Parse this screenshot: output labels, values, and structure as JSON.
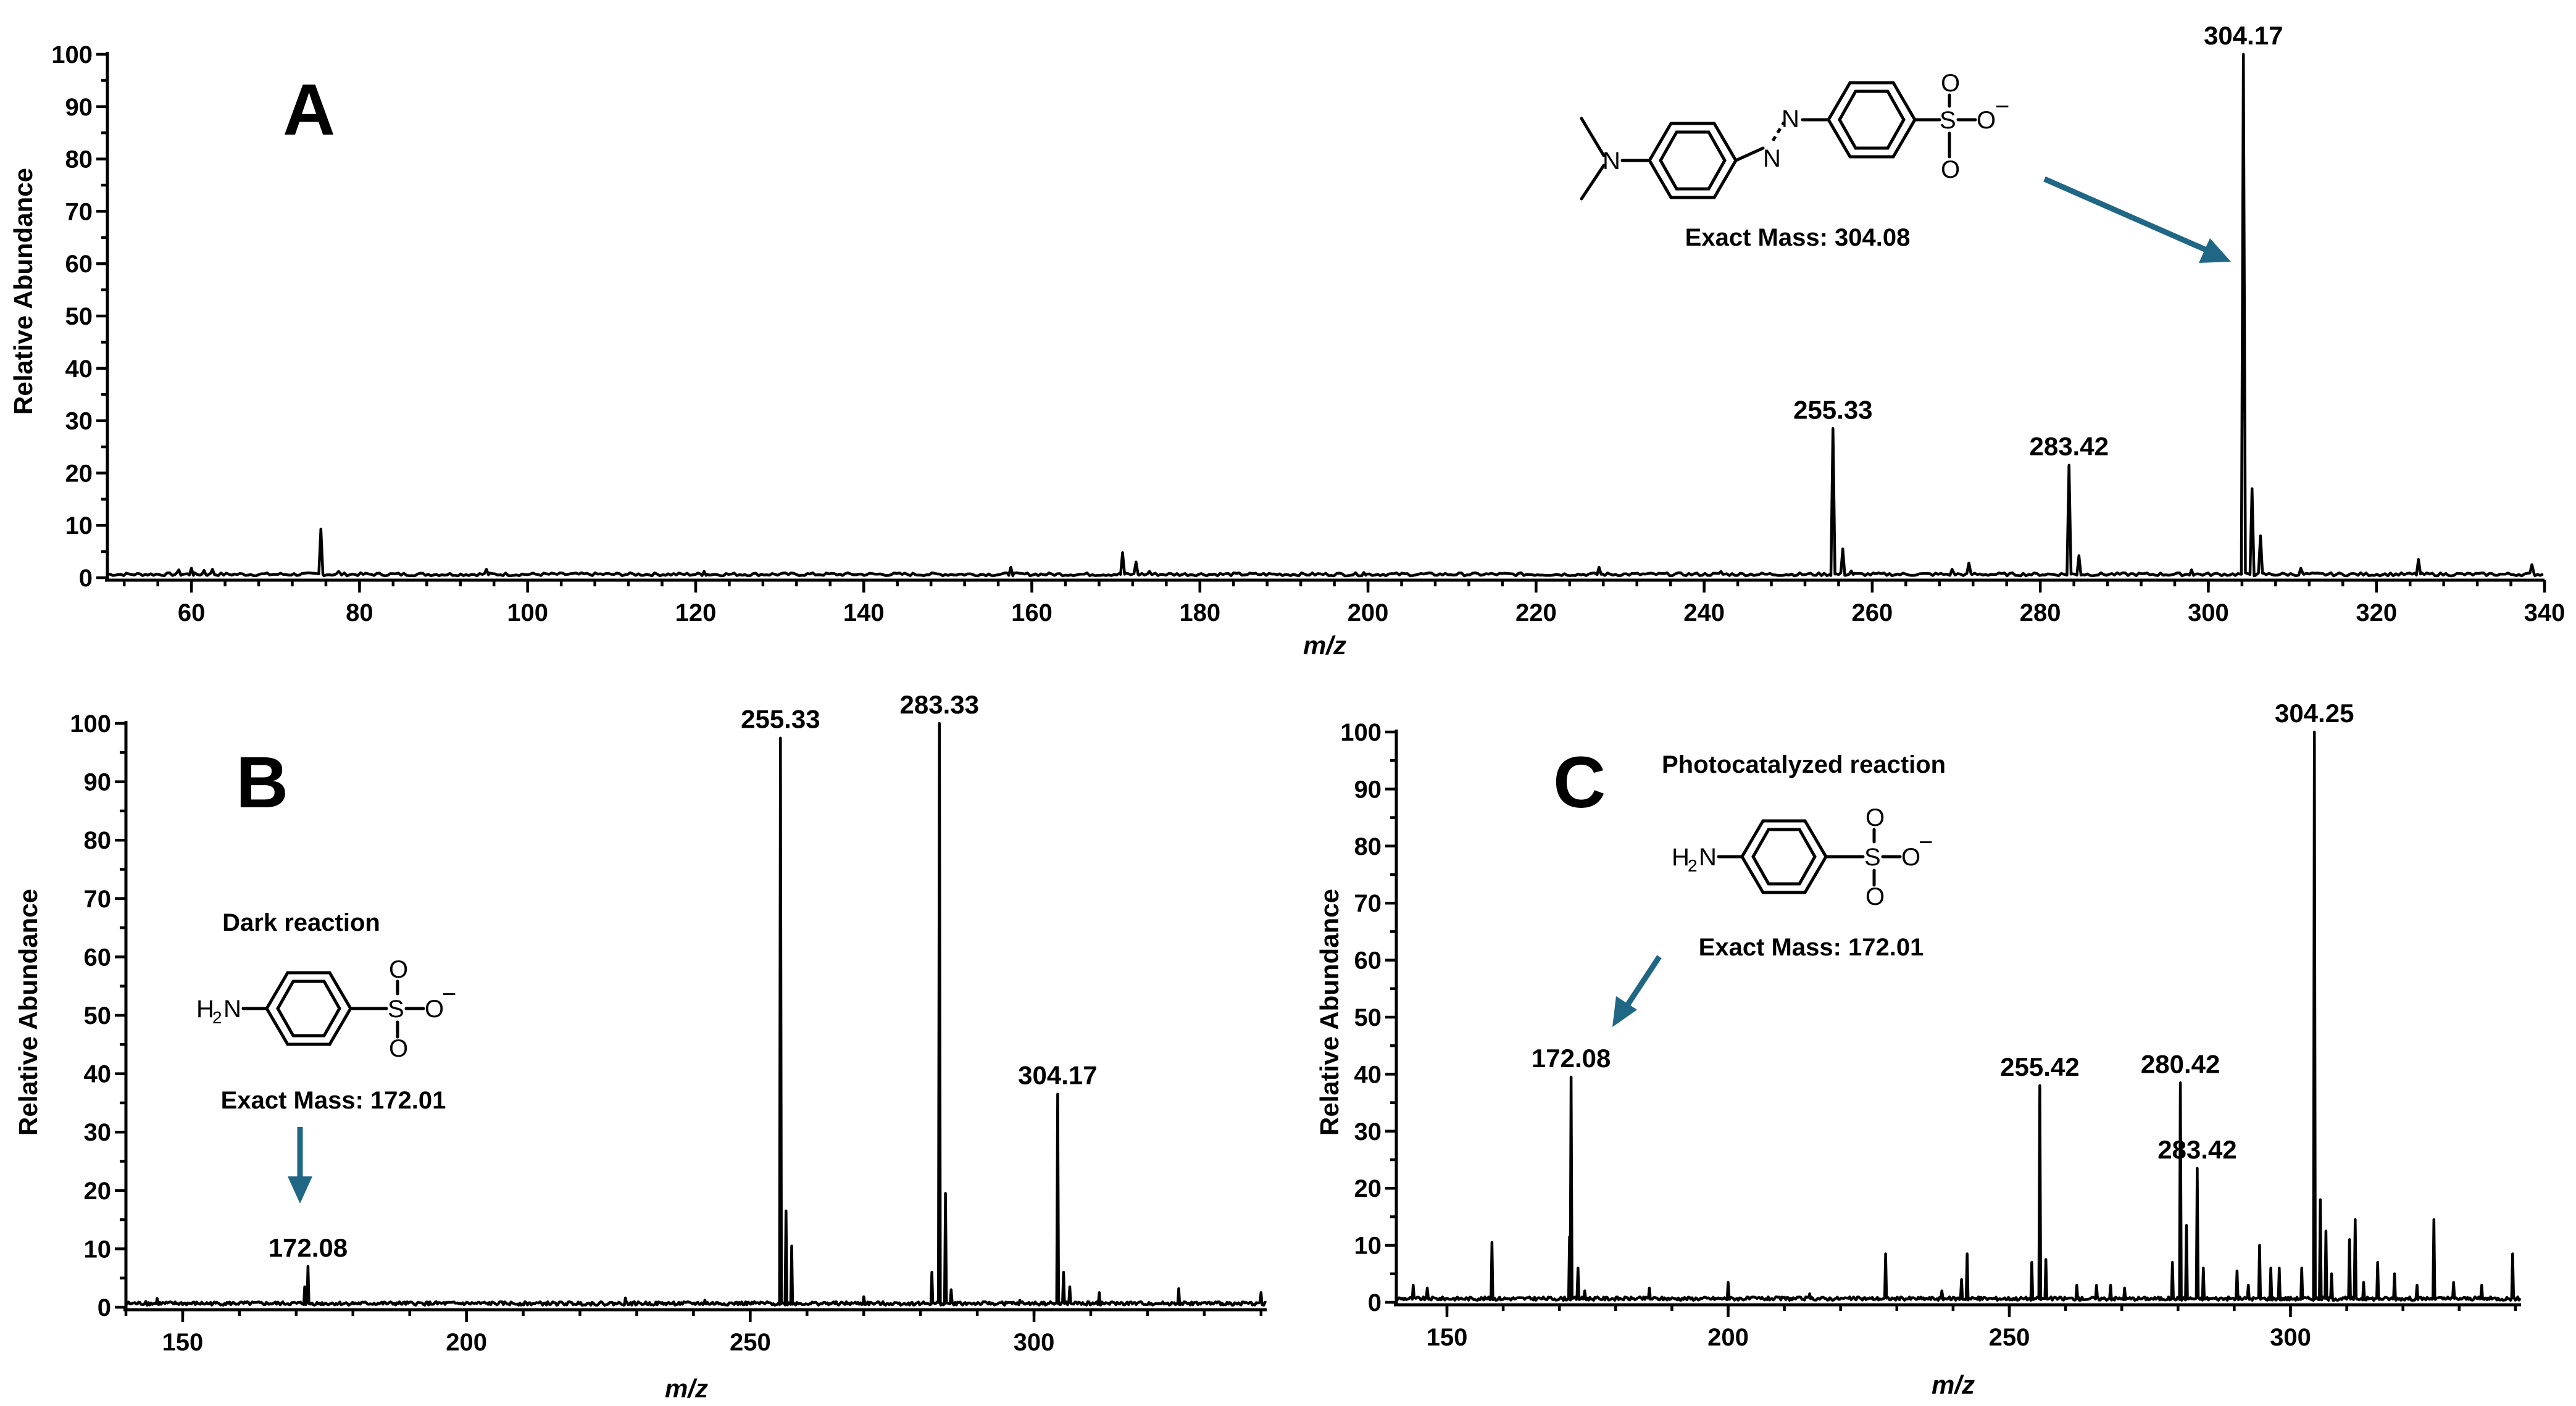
{
  "colors": {
    "trace": "#000000",
    "arrow": "#1f6784",
    "background": "#ffffff"
  },
  "chart_data": [
    {
      "panel": "A",
      "type": "line",
      "xlabel": "m/z",
      "ylabel": "Relative Abundance",
      "xlim": [
        50,
        340
      ],
      "ylim": [
        0,
        100
      ],
      "xticks": [
        60,
        80,
        100,
        120,
        140,
        160,
        180,
        200,
        220,
        240,
        260,
        280,
        300,
        320,
        340
      ],
      "yticks": [
        0,
        10,
        20,
        30,
        40,
        50,
        60,
        70,
        80,
        90,
        100
      ],
      "peaks": [
        [
          58.5,
          1.5
        ],
        [
          60,
          1.8
        ],
        [
          61.5,
          1.4
        ],
        [
          62.5,
          1.6
        ],
        [
          75.4,
          9.3
        ],
        [
          77.5,
          1.2
        ],
        [
          95.1,
          1.6
        ],
        [
          121,
          1.2
        ],
        [
          157.5,
          2
        ],
        [
          170.8,
          4.8
        ],
        [
          172.4,
          3
        ],
        [
          174,
          1.2
        ],
        [
          199.5,
          1
        ],
        [
          227.5,
          2
        ],
        [
          242,
          1.2
        ],
        [
          255.33,
          28.5
        ],
        [
          256.5,
          5.5
        ],
        [
          257.5,
          1.3
        ],
        [
          269.5,
          1.6
        ],
        [
          271.5,
          2.8
        ],
        [
          283.42,
          21.5
        ],
        [
          284.6,
          4.2
        ],
        [
          298,
          1.5
        ],
        [
          304.17,
          100
        ],
        [
          305.2,
          17
        ],
        [
          306.2,
          8
        ],
        [
          311,
          1.8
        ],
        [
          325,
          3.5
        ],
        [
          338.5,
          2.5
        ]
      ],
      "labels": [
        {
          "x": 255.33,
          "y": 28.5,
          "text": "255.33"
        },
        {
          "x": 283.42,
          "y": 21.5,
          "text": "283.42"
        },
        {
          "x": 304.17,
          "y": 100,
          "text": "304.17"
        }
      ],
      "annotation": {
        "mass": "Exact Mass: 304.08",
        "target_x": 304.17
      }
    },
    {
      "panel": "B",
      "type": "line",
      "xlabel": "m/z",
      "ylabel": "Relative Abundance",
      "xlim": [
        140,
        341
      ],
      "ylim": [
        0,
        100
      ],
      "xticks": [
        150,
        200,
        250,
        300
      ],
      "yticks": [
        0,
        10,
        20,
        30,
        40,
        50,
        60,
        70,
        80,
        90,
        100
      ],
      "peaks": [
        [
          143.5,
          1
        ],
        [
          145.5,
          1.5
        ],
        [
          171.5,
          3.5
        ],
        [
          172.08,
          7
        ],
        [
          228,
          1.6
        ],
        [
          242,
          1.2
        ],
        [
          255.33,
          97.5
        ],
        [
          256.3,
          16.5
        ],
        [
          257.3,
          10.5
        ],
        [
          270,
          1.8
        ],
        [
          282,
          6
        ],
        [
          283.33,
          100
        ],
        [
          284.4,
          19.5
        ],
        [
          285.4,
          3
        ],
        [
          297.5,
          1.2
        ],
        [
          304.17,
          36.5
        ],
        [
          305.2,
          6
        ],
        [
          306.3,
          3.5
        ],
        [
          311.5,
          2.5
        ],
        [
          325.5,
          3.2
        ],
        [
          340,
          2.5
        ]
      ],
      "labels": [
        {
          "x": 172.08,
          "y": 7,
          "text": "172.08"
        },
        {
          "x": 255.33,
          "y": 97.5,
          "text": "255.33"
        },
        {
          "x": 283.33,
          "y": 100,
          "text": "283.33"
        },
        {
          "x": 304.17,
          "y": 36.5,
          "text": "304.17"
        }
      ],
      "annotation": {
        "title": "Dark reaction",
        "mass": "Exact Mass: 172.01",
        "target_x": 172.08
      }
    },
    {
      "panel": "C",
      "type": "line",
      "xlabel": "m/z",
      "ylabel": "Relative Abundance",
      "xlim": [
        141,
        341
      ],
      "ylim": [
        0,
        100
      ],
      "xticks": [
        150,
        200,
        250,
        300
      ],
      "yticks": [
        0,
        10,
        20,
        30,
        40,
        50,
        60,
        70,
        80,
        90,
        100
      ],
      "peaks": [
        [
          144,
          3
        ],
        [
          146.5,
          2.5
        ],
        [
          158,
          10.5
        ],
        [
          171.8,
          11.5
        ],
        [
          172.08,
          39.5
        ],
        [
          173.3,
          6
        ],
        [
          174.5,
          2
        ],
        [
          186,
          2.5
        ],
        [
          200,
          3.5
        ],
        [
          214.5,
          1.5
        ],
        [
          228,
          8.5
        ],
        [
          238,
          2
        ],
        [
          241.5,
          4
        ],
        [
          242.5,
          8.5
        ],
        [
          254,
          7
        ],
        [
          255.42,
          38
        ],
        [
          256.5,
          7.5
        ],
        [
          262,
          3
        ],
        [
          265.5,
          3
        ],
        [
          268,
          3
        ],
        [
          270.5,
          2.5
        ],
        [
          279,
          7
        ],
        [
          280.42,
          38.5
        ],
        [
          281.5,
          13.5
        ],
        [
          283.42,
          23.5
        ],
        [
          284.5,
          6
        ],
        [
          290.5,
          5.5
        ],
        [
          292.5,
          3
        ],
        [
          294.5,
          10
        ],
        [
          296.5,
          6
        ],
        [
          298,
          6
        ],
        [
          302,
          6
        ],
        [
          304.25,
          100
        ],
        [
          305.3,
          18
        ],
        [
          306.3,
          12.5
        ],
        [
          307.3,
          5
        ],
        [
          310.5,
          11
        ],
        [
          311.5,
          14.5
        ],
        [
          313,
          3.5
        ],
        [
          315.5,
          7
        ],
        [
          318.5,
          5
        ],
        [
          322.5,
          3
        ],
        [
          325.5,
          14.5
        ],
        [
          329,
          3.5
        ],
        [
          334,
          3
        ],
        [
          339.5,
          8.5
        ]
      ],
      "labels": [
        {
          "x": 172.08,
          "y": 39.5,
          "text": "172.08"
        },
        {
          "x": 255.42,
          "y": 38,
          "text": "255.42"
        },
        {
          "x": 280.42,
          "y": 38.5,
          "text": "280.42"
        },
        {
          "x": 283.42,
          "y": 23.5,
          "text": "283.42"
        },
        {
          "x": 304.25,
          "y": 100,
          "text": "304.25"
        }
      ],
      "annotation": {
        "title": "Photocatalyzed reaction",
        "mass": "Exact Mass: 172.01",
        "target_x": 172.08
      }
    }
  ],
  "structures": {
    "azo_dye": {
      "atoms": [
        "N",
        "N",
        "N",
        "S",
        "O",
        "O",
        "O",
        "−"
      ]
    },
    "sulfanilate": {
      "atoms": [
        "H",
        "2",
        "N",
        "S",
        "O",
        "O",
        "O",
        "−"
      ]
    }
  }
}
